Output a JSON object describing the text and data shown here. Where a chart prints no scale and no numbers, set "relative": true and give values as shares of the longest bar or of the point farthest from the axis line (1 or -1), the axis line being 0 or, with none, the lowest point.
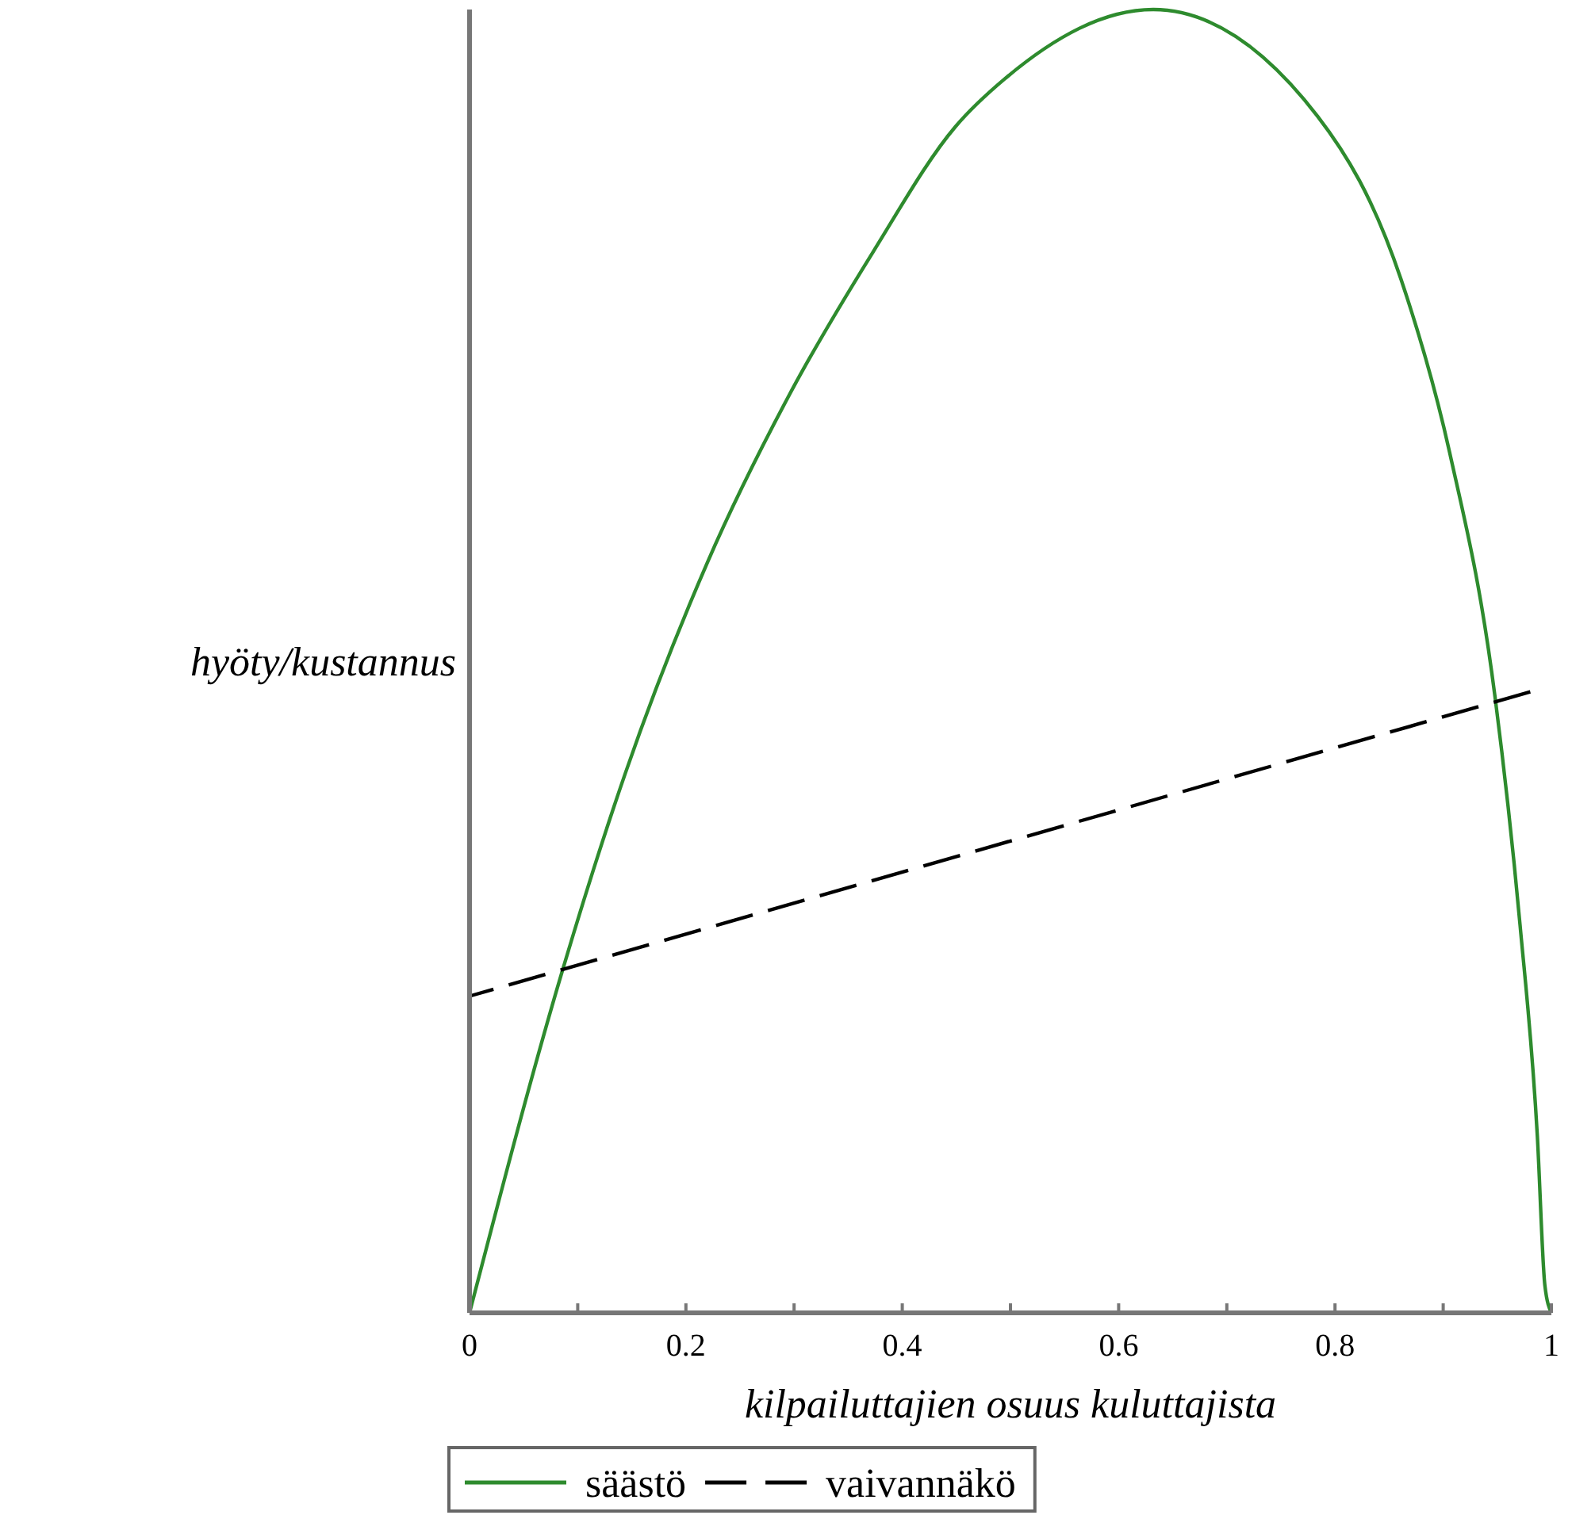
{
  "chart_data": {
    "type": "line",
    "relative": true,
    "xlabel": "kilpailuttajien osuus kuluttajista",
    "ylabel": "hyöty/kustannus",
    "xlim": [
      0,
      1
    ],
    "xticks": [
      0,
      {
        "value": 0.1,
        "label": null
      },
      0.2,
      {
        "value": 0.3,
        "label": null
      },
      0.4,
      {
        "value": 0.5,
        "label": null
      },
      0.6,
      {
        "value": 0.7,
        "label": null
      },
      0.8,
      {
        "value": 0.9,
        "label": null
      },
      1
    ],
    "legend": "bottom",
    "grid": false,
    "series": [
      {
        "name": "säästö",
        "color": "#2e8b2e",
        "line_style": "solid",
        "x": [
          0,
          0.086,
          0.144,
          0.22,
          0.296,
          0.373,
          0.449,
          0.495,
          0.632,
          0.784,
          0.861,
          0.906,
          0.948,
          0.971,
          0.987,
          0.994,
          1
        ],
        "values": [
          0,
          0.263,
          0.414,
          0.576,
          0.705,
          0.814,
          0.91,
          0.947,
          1,
          0.918,
          0.793,
          0.66,
          0.472,
          0.298,
          0.136,
          0.021,
          0
        ]
      },
      {
        "name": "vaivannäkö",
        "color": "#000000",
        "line_style": "dashed",
        "x": [
          0,
          0.987
        ],
        "values": [
          0.243,
          0.478
        ]
      }
    ]
  }
}
